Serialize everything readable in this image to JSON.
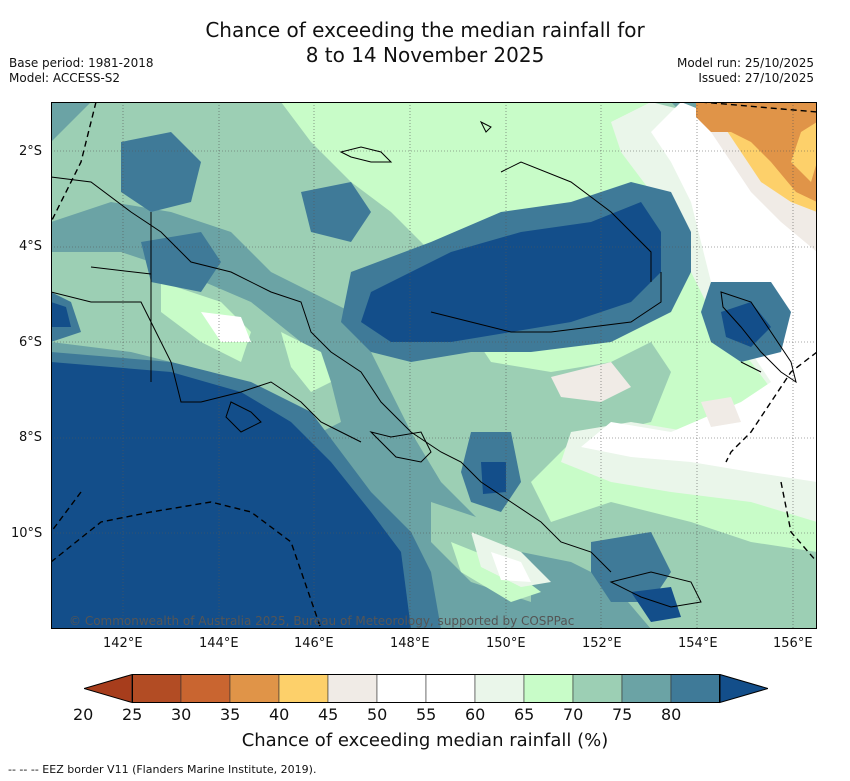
{
  "title": {
    "line1": "Chance of exceeding the median rainfall for",
    "line2": "8 to 14 November 2025"
  },
  "meta_left": {
    "base_period": "Base period: 1981-2018",
    "model": "Model: ACCESS-S2"
  },
  "meta_right": {
    "model_run": "Model run: 25/10/2025",
    "issued": "Issued: 27/10/2025"
  },
  "map": {
    "lat_labels": [
      "2°S",
      "4°S",
      "6°S",
      "8°S",
      "10°S"
    ],
    "lon_labels": [
      "142°E",
      "144°E",
      "146°E",
      "148°E",
      "150°E",
      "152°E",
      "154°E",
      "156°E"
    ],
    "copyright": "© Commonwealth of Australia 2025, Bureau of Meteorology, supported by COSPPac"
  },
  "colorbar": {
    "ticks": [
      "20",
      "25",
      "30",
      "35",
      "40",
      "45",
      "50",
      "55",
      "60",
      "65",
      "70",
      "75",
      "80"
    ],
    "colors": [
      "#a73d1c",
      "#b24c24",
      "#c96530",
      "#e09448",
      "#fdd06a",
      "#f0ebe6",
      "#ffffff",
      "#ffffff",
      "#eaf6ea",
      "#c8fcc8",
      "#9ccfb4",
      "#6ba3a5",
      "#3f7a98",
      "#134e8a"
    ],
    "title": "Chance of exceeding median rainfall (%)"
  },
  "footer": "--  --  -- EEZ border V11 (Flanders Marine Institute, 2019).",
  "palette": {
    "p80": "#134e8a",
    "p75": "#3f7a98",
    "p70": "#6ba3a5",
    "p65": "#9ccfb4",
    "p60": "#c8fcc8",
    "p55": "#eaf6ea",
    "p50": "#ffffff",
    "p45": "#f0ebe6",
    "p35": "#fdd06a",
    "p30": "#e09448"
  }
}
